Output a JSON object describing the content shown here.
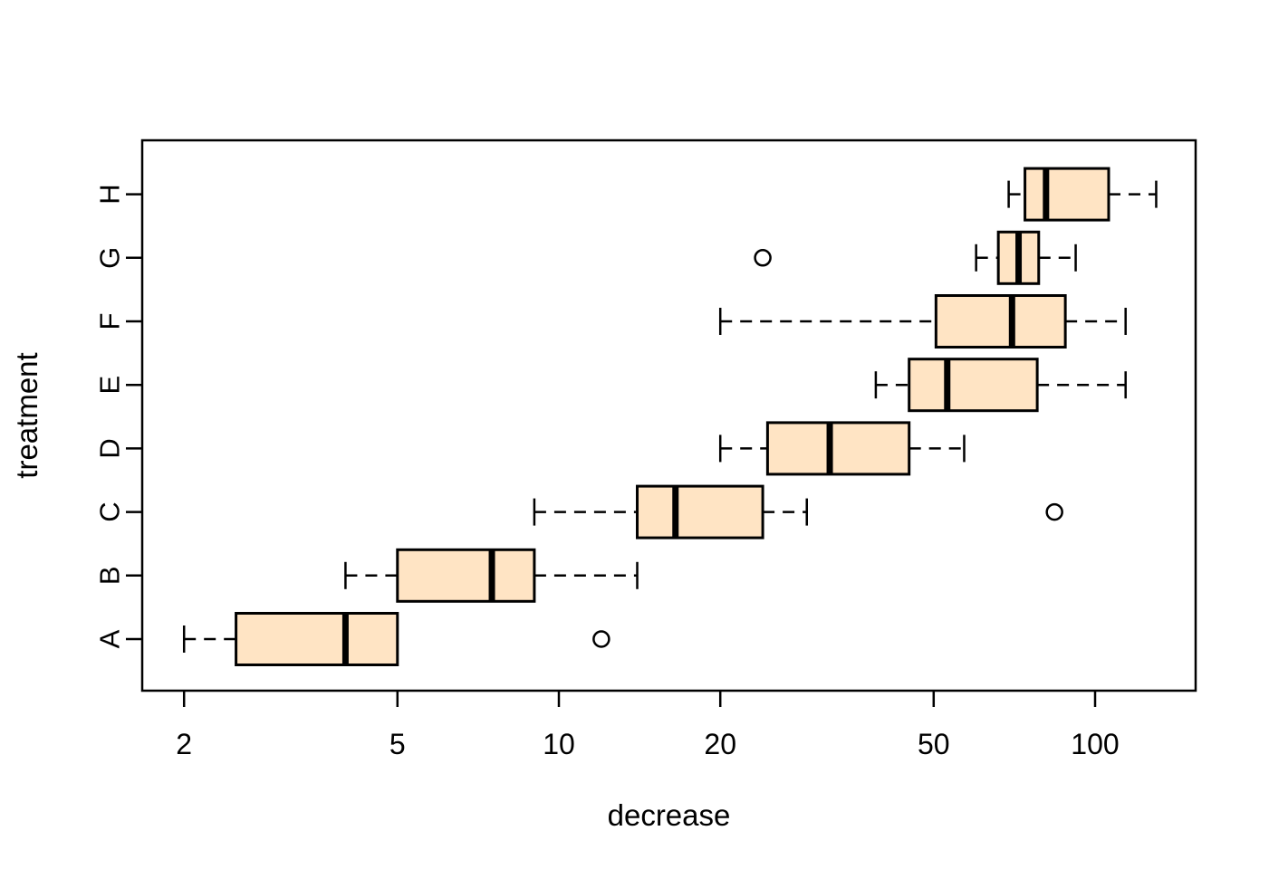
{
  "chart_data": {
    "type": "boxplot",
    "orientation": "horizontal",
    "xlabel": "decrease",
    "ylabel": "treatment",
    "x_scale": "log10",
    "x_ticks": [
      2,
      5,
      10,
      20,
      50,
      100
    ],
    "xlim": [
      1.7,
      154
    ],
    "categories": [
      "A",
      "B",
      "C",
      "D",
      "E",
      "F",
      "G",
      "H"
    ],
    "legend": "none",
    "grid": "off",
    "series": [
      {
        "treatment": "A",
        "whisker_low": 2,
        "q1": 2.5,
        "median": 4,
        "q3": 5,
        "whisker_high": 5,
        "outliers": [
          12
        ]
      },
      {
        "treatment": "B",
        "whisker_low": 4,
        "q1": 5,
        "median": 7.5,
        "q3": 9,
        "whisker_high": 14,
        "outliers": []
      },
      {
        "treatment": "C",
        "whisker_low": 9,
        "q1": 14,
        "median": 16.5,
        "q3": 24,
        "whisker_high": 29,
        "outliers": [
          84
        ]
      },
      {
        "treatment": "D",
        "whisker_low": 20,
        "q1": 24.5,
        "median": 32,
        "q3": 45,
        "whisker_high": 57,
        "outliers": []
      },
      {
        "treatment": "E",
        "whisker_low": 39,
        "q1": 45,
        "median": 53,
        "q3": 78,
        "whisker_high": 114,
        "outliers": []
      },
      {
        "treatment": "F",
        "whisker_low": 20,
        "q1": 50.5,
        "median": 70,
        "q3": 88,
        "whisker_high": 114,
        "outliers": []
      },
      {
        "treatment": "G",
        "whisker_low": 60,
        "q1": 66,
        "median": 72,
        "q3": 78.5,
        "whisker_high": 92,
        "outliers": [
          24
        ]
      },
      {
        "treatment": "H",
        "whisker_low": 69,
        "q1": 74,
        "median": 81,
        "q3": 106,
        "whisker_high": 130,
        "outliers": []
      }
    ],
    "colors": {
      "box_fill": "#FFE4C4",
      "stroke": "#000000",
      "background": "#FFFFFF"
    }
  }
}
